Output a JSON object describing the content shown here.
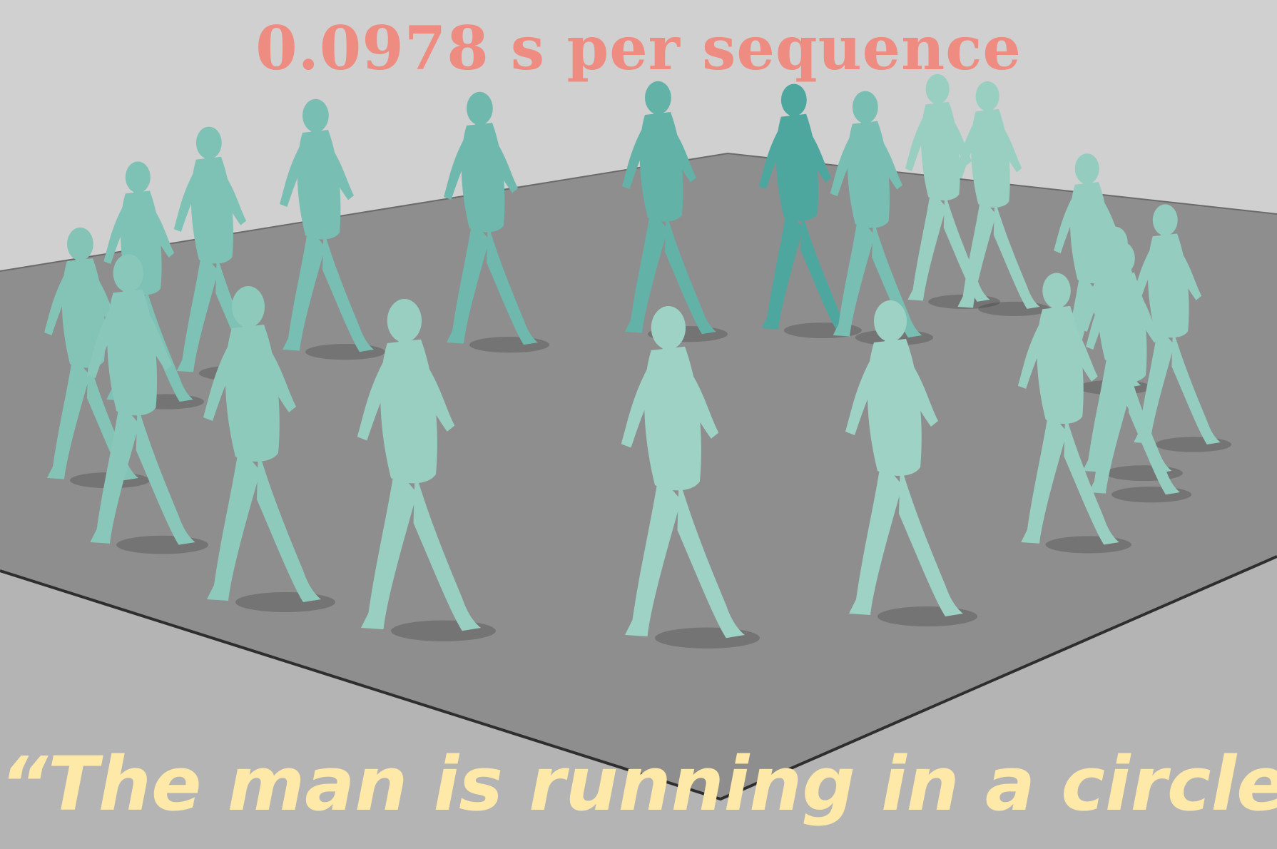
{
  "timing_label": "0.0978 s per sequence",
  "caption": "“The man is running in a circle.”",
  "colors": {
    "background": "#cfcfcf",
    "floor": "#8c8c8c",
    "floor_edge": "#2e2e2e",
    "figure_dark": "#3e9e96",
    "figure_light": "#a9d8c9",
    "timing_text": "#ee8c82",
    "caption_text": "#ffe9a8"
  }
}
